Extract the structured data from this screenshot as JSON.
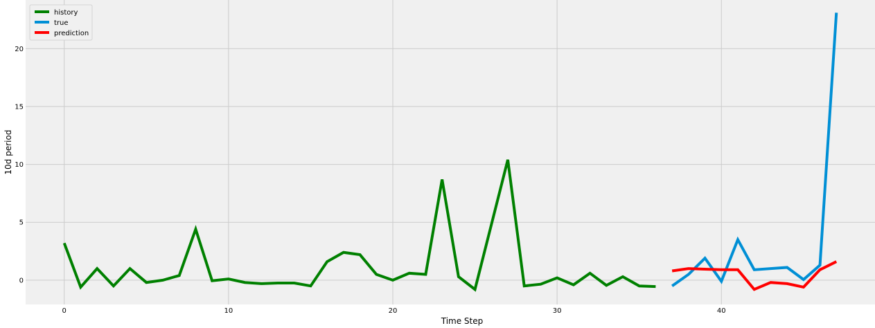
{
  "chart_data": {
    "type": "line",
    "xlabel": "Time Step",
    "ylabel": "10d period",
    "xlim": [
      -2.35,
      49.35
    ],
    "ylim": [
      -2.1,
      24.2
    ],
    "xticks": [
      0,
      10,
      20,
      30,
      40
    ],
    "yticks": [
      0,
      5,
      10,
      15,
      20
    ],
    "grid": true,
    "legend_position": "top-left",
    "series": [
      {
        "name": "history",
        "color": "#008000",
        "x": [
          0,
          1,
          2,
          3,
          4,
          5,
          6,
          7,
          8,
          9,
          10,
          11,
          12,
          13,
          14,
          15,
          16,
          17,
          18,
          19,
          20,
          21,
          22,
          23,
          24,
          25,
          26,
          27,
          28,
          29,
          30,
          31,
          32,
          33,
          34,
          35,
          36
        ],
        "values": [
          3.2,
          -0.6,
          1.0,
          -0.5,
          1.0,
          -0.2,
          0.0,
          0.4,
          4.4,
          -0.05,
          0.1,
          -0.2,
          -0.3,
          -0.25,
          -0.25,
          -0.5,
          1.6,
          2.4,
          2.2,
          0.5,
          0.0,
          0.6,
          0.5,
          8.7,
          0.3,
          -0.8,
          4.8,
          10.4,
          -0.5,
          -0.35,
          0.2,
          -0.4,
          0.6,
          -0.45,
          0.3,
          -0.5,
          -0.55
        ]
      },
      {
        "name": "true",
        "color": "#008fd5",
        "x": [
          37,
          38,
          39,
          40,
          41,
          42,
          43,
          44,
          45,
          46,
          47
        ],
        "values": [
          -0.5,
          0.5,
          1.9,
          -0.1,
          3.5,
          0.9,
          1.0,
          1.1,
          0.05,
          1.3,
          23.1
        ]
      },
      {
        "name": "prediction",
        "color": "#ff0000",
        "x": [
          37,
          38,
          39,
          40,
          41,
          42,
          43,
          44,
          45,
          46,
          47
        ],
        "values": [
          0.8,
          1.0,
          0.95,
          0.9,
          0.9,
          -0.8,
          -0.2,
          -0.3,
          -0.6,
          0.9,
          1.6
        ]
      }
    ]
  }
}
